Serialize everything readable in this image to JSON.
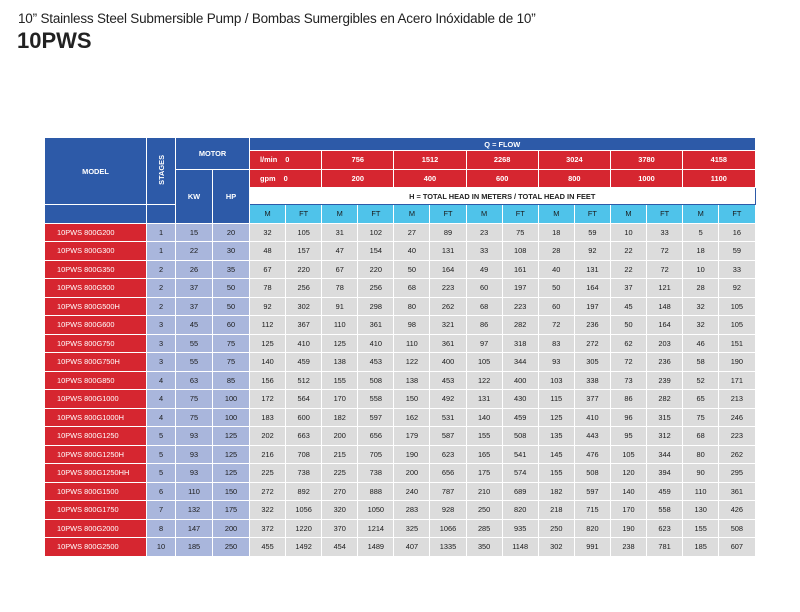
{
  "header": {
    "title": "10” Stainless Steel Submersible Pump / Bombas Sumergibles en Acero Inóxidable de 10”",
    "model": "10PWS"
  },
  "table": {
    "model_label": "MODEL",
    "stages_label": "STAGES",
    "motor_label": "MOTOR",
    "kw_label": "KW",
    "hp_label": "HP",
    "flow_label": "Q = FLOW",
    "lmin_label": "l/min",
    "gpm_label": "gpm",
    "lmin_values": [
      "0",
      "756",
      "1512",
      "2268",
      "3024",
      "3780",
      "4158"
    ],
    "gpm_values": [
      "0",
      "200",
      "400",
      "600",
      "800",
      "1000",
      "1100"
    ],
    "head_label": "H = TOTAL HEAD IN METERS / TOTAL HEAD IN FEET",
    "m_label": "M",
    "ft_label": "FT",
    "colors": {
      "blue": "#2d5aa8",
      "red": "#d62630",
      "lavender": "#a9b6dc",
      "cyan": "#4fc3ea",
      "gray": "#dcdcdc"
    },
    "rows": [
      {
        "model": "10PWS 800G200",
        "stages": "1",
        "kw": "15",
        "hp": "20",
        "heads": [
          "32",
          "105",
          "31",
          "102",
          "27",
          "89",
          "23",
          "75",
          "18",
          "59",
          "10",
          "33",
          "5",
          "16"
        ]
      },
      {
        "model": "10PWS 800G300",
        "stages": "1",
        "kw": "22",
        "hp": "30",
        "heads": [
          "48",
          "157",
          "47",
          "154",
          "40",
          "131",
          "33",
          "108",
          "28",
          "92",
          "22",
          "72",
          "18",
          "59"
        ]
      },
      {
        "model": "10PWS 800G350",
        "stages": "2",
        "kw": "26",
        "hp": "35",
        "heads": [
          "67",
          "220",
          "67",
          "220",
          "50",
          "164",
          "49",
          "161",
          "40",
          "131",
          "22",
          "72",
          "10",
          "33"
        ]
      },
      {
        "model": "10PWS 800G500",
        "stages": "2",
        "kw": "37",
        "hp": "50",
        "heads": [
          "78",
          "256",
          "78",
          "256",
          "68",
          "223",
          "60",
          "197",
          "50",
          "164",
          "37",
          "121",
          "28",
          "92"
        ]
      },
      {
        "model": "10PWS 800G500H",
        "stages": "2",
        "kw": "37",
        "hp": "50",
        "heads": [
          "92",
          "302",
          "91",
          "298",
          "80",
          "262",
          "68",
          "223",
          "60",
          "197",
          "45",
          "148",
          "32",
          "105"
        ]
      },
      {
        "model": "10PWS 800G600",
        "stages": "3",
        "kw": "45",
        "hp": "60",
        "heads": [
          "112",
          "367",
          "110",
          "361",
          "98",
          "321",
          "86",
          "282",
          "72",
          "236",
          "50",
          "164",
          "32",
          "105"
        ]
      },
      {
        "model": "10PWS 800G750",
        "stages": "3",
        "kw": "55",
        "hp": "75",
        "heads": [
          "125",
          "410",
          "125",
          "410",
          "110",
          "361",
          "97",
          "318",
          "83",
          "272",
          "62",
          "203",
          "46",
          "151"
        ]
      },
      {
        "model": "10PWS 800G750H",
        "stages": "3",
        "kw": "55",
        "hp": "75",
        "heads": [
          "140",
          "459",
          "138",
          "453",
          "122",
          "400",
          "105",
          "344",
          "93",
          "305",
          "72",
          "236",
          "58",
          "190"
        ]
      },
      {
        "model": "10PWS 800G850",
        "stages": "4",
        "kw": "63",
        "hp": "85",
        "heads": [
          "156",
          "512",
          "155",
          "508",
          "138",
          "453",
          "122",
          "400",
          "103",
          "338",
          "73",
          "239",
          "52",
          "171"
        ]
      },
      {
        "model": "10PWS 800G1000",
        "stages": "4",
        "kw": "75",
        "hp": "100",
        "heads": [
          "172",
          "564",
          "170",
          "558",
          "150",
          "492",
          "131",
          "430",
          "115",
          "377",
          "86",
          "282",
          "65",
          "213"
        ]
      },
      {
        "model": "10PWS 800G1000H",
        "stages": "4",
        "kw": "75",
        "hp": "100",
        "heads": [
          "183",
          "600",
          "182",
          "597",
          "162",
          "531",
          "140",
          "459",
          "125",
          "410",
          "96",
          "315",
          "75",
          "246"
        ]
      },
      {
        "model": "10PWS 800G1250",
        "stages": "5",
        "kw": "93",
        "hp": "125",
        "heads": [
          "202",
          "663",
          "200",
          "656",
          "179",
          "587",
          "155",
          "508",
          "135",
          "443",
          "95",
          "312",
          "68",
          "223"
        ]
      },
      {
        "model": "10PWS 800G1250H",
        "stages": "5",
        "kw": "93",
        "hp": "125",
        "heads": [
          "216",
          "708",
          "215",
          "705",
          "190",
          "623",
          "165",
          "541",
          "145",
          "476",
          "105",
          "344",
          "80",
          "262"
        ]
      },
      {
        "model": "10PWS 800G1250HH",
        "stages": "5",
        "kw": "93",
        "hp": "125",
        "heads": [
          "225",
          "738",
          "225",
          "738",
          "200",
          "656",
          "175",
          "574",
          "155",
          "508",
          "120",
          "394",
          "90",
          "295"
        ]
      },
      {
        "model": "10PWS 800G1500",
        "stages": "6",
        "kw": "110",
        "hp": "150",
        "heads": [
          "272",
          "892",
          "270",
          "888",
          "240",
          "787",
          "210",
          "689",
          "182",
          "597",
          "140",
          "459",
          "110",
          "361"
        ]
      },
      {
        "model": "10PWS 800G1750",
        "stages": "7",
        "kw": "132",
        "hp": "175",
        "heads": [
          "322",
          "1056",
          "320",
          "1050",
          "283",
          "928",
          "250",
          "820",
          "218",
          "715",
          "170",
          "558",
          "130",
          "426"
        ]
      },
      {
        "model": "10PWS 800G2000",
        "stages": "8",
        "kw": "147",
        "hp": "200",
        "heads": [
          "372",
          "1220",
          "370",
          "1214",
          "325",
          "1066",
          "285",
          "935",
          "250",
          "820",
          "190",
          "623",
          "155",
          "508"
        ]
      },
      {
        "model": "10PWS 800G2500",
        "stages": "10",
        "kw": "185",
        "hp": "250",
        "heads": [
          "455",
          "1492",
          "454",
          "1489",
          "407",
          "1335",
          "350",
          "1148",
          "302",
          "991",
          "238",
          "781",
          "185",
          "607"
        ]
      }
    ]
  }
}
